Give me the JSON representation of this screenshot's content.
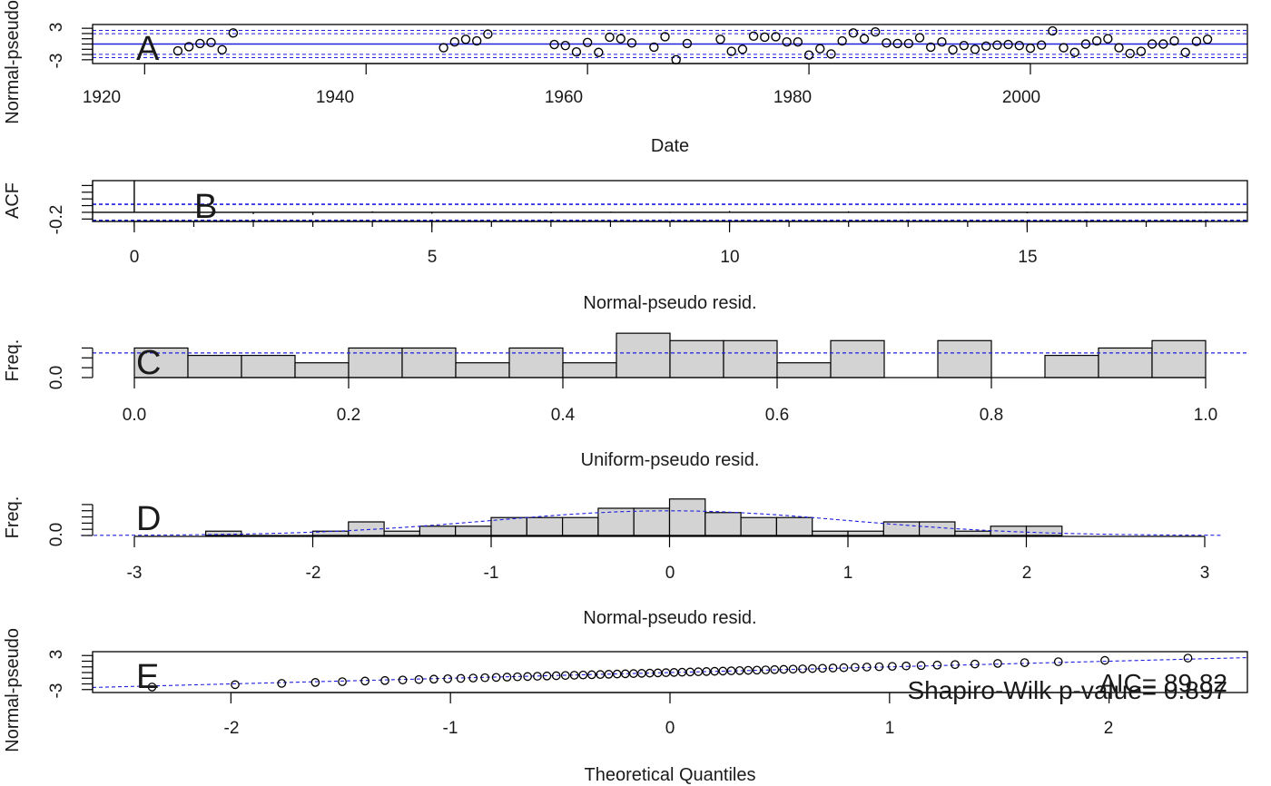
{
  "chart_data": [
    {
      "panel": "A",
      "type": "scatter",
      "xlabel": "Date",
      "ylabel": "Normal-pseudo",
      "xlim": [
        1915.3,
        2019.6
      ],
      "ylim": [
        -3.2,
        3.2
      ],
      "xticks": [
        1920,
        1940,
        1960,
        1980,
        2000
      ],
      "yticks": [
        3,
        -3
      ],
      "hlines_solid": [
        0
      ],
      "hlines_dashed": [
        -2.6,
        -1.96,
        1.96,
        2.6
      ],
      "x": [
        1923,
        1924,
        1925,
        1926,
        1927,
        1928,
        1947,
        1948,
        1949,
        1950,
        1951,
        1957,
        1958,
        1959,
        1960,
        1961,
        1962,
        1963,
        1964,
        1966,
        1967,
        1968,
        1969,
        1972,
        1973,
        1974,
        1975,
        1976,
        1977,
        1978,
        1979,
        1980,
        1981,
        1982,
        1983,
        1984,
        1985,
        1986,
        1987,
        1988,
        1989,
        1990,
        1991,
        1992,
        1993,
        1994,
        1995,
        1996,
        1997,
        1998,
        1999,
        2000,
        2001,
        2002,
        2003,
        2004,
        2005,
        2006,
        2007,
        2008,
        2009,
        2010,
        2011,
        2012,
        2013,
        2014,
        2015,
        2016
      ],
      "y": [
        -1.3,
        -0.5,
        0.1,
        0.3,
        -1.1,
        2.1,
        -0.7,
        0.4,
        0.9,
        0.6,
        1.9,
        -0.1,
        -0.3,
        -1.5,
        0.3,
        -1.6,
        1.3,
        1.0,
        0.2,
        -0.6,
        1.4,
        -3.0,
        0.1,
        0.9,
        -1.4,
        -1.0,
        1.5,
        1.3,
        1.4,
        0.4,
        0.4,
        -2.1,
        -0.9,
        -1.9,
        0.6,
        2.1,
        1.0,
        2.3,
        0.2,
        0.1,
        0.1,
        1.2,
        -0.6,
        0.4,
        -1.1,
        -0.3,
        -1.0,
        -0.4,
        -0.2,
        -0.1,
        -0.3,
        -0.8,
        -0.2,
        2.5,
        -0.7,
        -1.6,
        0.0,
        0.6,
        1.0,
        -0.7,
        -1.8,
        -1.4,
        0.0,
        0.0,
        0.6,
        -1.6,
        0.5,
        0.9
      ],
      "title": ""
    },
    {
      "panel": "B",
      "type": "bar",
      "xlabel": "Normal-pseudo resid.",
      "ylabel": "ACF",
      "xlim": [
        -0.7,
        18.7
      ],
      "ylim": [
        -0.3,
        1.0
      ],
      "xticks": [
        0,
        5,
        10,
        15
      ],
      "yticks": [
        -0.2
      ],
      "y_minor_ticks": [
        0.0,
        0.2,
        0.4,
        0.6,
        0.8
      ],
      "conf_limits": [
        -0.24,
        0.24
      ],
      "lags": [
        0,
        1,
        2,
        3,
        4,
        5,
        6,
        7,
        8,
        9,
        10,
        11,
        12,
        13,
        14,
        15,
        16,
        17,
        18
      ],
      "acf": [
        1.0,
        0.02,
        -0.05,
        -0.08,
        0.03,
        -0.04,
        0.01,
        -0.03,
        0.02,
        -0.02,
        0.04,
        -0.01,
        0.03,
        -0.02,
        0.01,
        -0.03,
        0.02,
        -0.01,
        0.02
      ]
    },
    {
      "panel": "C",
      "type": "bar",
      "xlabel": "Uniform-pseudo resid.",
      "ylabel": "Freq.",
      "xlim": [
        -0.04,
        1.04
      ],
      "ylim": [
        0,
        1.4
      ],
      "xticks": [
        "0.0",
        "0.2",
        "0.4",
        "0.6",
        "0.8",
        "1.0"
      ],
      "yticks": [
        "0.0"
      ],
      "y_minor_ticks": [
        0.4,
        0.8,
        1.2
      ],
      "expected_density": 1.0,
      "bin_edges": [
        0.0,
        0.05,
        0.1,
        0.15,
        0.2,
        0.25,
        0.3,
        0.35,
        0.4,
        0.45,
        0.5,
        0.55,
        0.6,
        0.65,
        0.7,
        0.75,
        0.8,
        0.85,
        0.9,
        0.95,
        1.0
      ],
      "values": [
        1.2,
        0.9,
        0.9,
        0.6,
        1.2,
        1.2,
        0.6,
        1.2,
        0.6,
        1.8,
        1.5,
        1.5,
        0.6,
        1.5,
        0.0,
        1.5,
        0.0,
        0.9,
        1.2,
        1.5
      ]
    },
    {
      "panel": "D",
      "type": "bar",
      "xlabel": "Normal-pseudo resid.",
      "ylabel": "Freq.",
      "xlim": [
        -3.3,
        3.1
      ],
      "ylim": [
        0,
        0.66
      ],
      "xticks": [
        -3,
        -2,
        -1,
        0,
        1,
        2,
        3
      ],
      "yticks": [
        "0.0"
      ],
      "y_minor_ticks": [
        0.1,
        0.2,
        0.3,
        0.4,
        0.5
      ],
      "normal_curve": true,
      "bin_edges": [
        -2.6,
        -2.4,
        -2.2,
        -2.0,
        -1.8,
        -1.6,
        -1.4,
        -1.2,
        -1.0,
        -0.8,
        -0.6,
        -0.4,
        -0.2,
        0.0,
        0.2,
        0.4,
        0.6,
        0.8,
        1.0,
        1.2,
        1.4,
        1.6,
        1.8,
        2.0,
        2.2
      ],
      "values": [
        0.07,
        0.0,
        0.0,
        0.07,
        0.22,
        0.07,
        0.15,
        0.15,
        0.29,
        0.29,
        0.29,
        0.44,
        0.44,
        0.59,
        0.37,
        0.29,
        0.29,
        0.07,
        0.07,
        0.22,
        0.22,
        0.07,
        0.15,
        0.15
      ]
    },
    {
      "panel": "E",
      "type": "scatter",
      "xlabel": "Theoretical Quantiles",
      "ylabel": "Normal-pseudo",
      "xlim": [
        -2.63,
        2.63
      ],
      "ylim": [
        -3.2,
        3.2
      ],
      "xticks": [
        -2,
        -1,
        0,
        1,
        2
      ],
      "yticks": [
        3,
        -3
      ],
      "n_points": 68,
      "reference_line": true,
      "annotations": [
        "AIC= 89.82",
        "Shapiro-Wilk p-value= 0.897"
      ]
    }
  ]
}
